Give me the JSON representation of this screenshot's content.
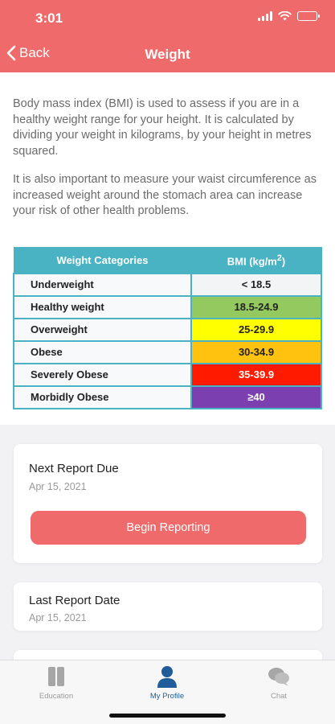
{
  "status_bar": {
    "time": "3:01"
  },
  "nav": {
    "back_label": "Back",
    "title": "Weight"
  },
  "intro": {
    "paragraph1": "Body mass index (BMI) is used to assess if you are in a healthy weight range for your height. It is calculated by dividing your weight in kilograms, by your height in metres squared.",
    "paragraph2": "It is also important to measure your waist circumference as increased weight around the stomach area can increase your risk of other health problems."
  },
  "bmi_table": {
    "header_category": "Weight Categories",
    "header_bmi": "BMI (kg/m",
    "header_bmi_sup": "2",
    "header_bmi_close": ")",
    "rows": [
      {
        "category": "Underweight",
        "range": "< 18.5",
        "color": "#f2f4f5"
      },
      {
        "category": "Healthy weight",
        "range": "18.5-24.9",
        "color": "#93c95e"
      },
      {
        "category": "Overweight",
        "range": "25-29.9",
        "color": "#ffff00"
      },
      {
        "category": "Obese",
        "range": "30-34.9",
        "color": "#ffc20e"
      },
      {
        "category": "Severely Obese",
        "range": "35-39.9",
        "color": "#ff1a00"
      },
      {
        "category": "Morbidly Obese",
        "range": "≥40",
        "color": "#7b3fb0"
      }
    ]
  },
  "next_report": {
    "title": "Next Report Due",
    "date": "Apr 15, 2021",
    "button_label": "Begin Reporting"
  },
  "last_report": {
    "title": "Last Report Date",
    "date": "Apr 15, 2021"
  },
  "tabs": [
    {
      "label": "Education",
      "icon": "book-icon",
      "active": false
    },
    {
      "label": "My Profile",
      "icon": "person-icon",
      "active": true
    },
    {
      "label": "Chat",
      "icon": "chat-icon",
      "active": false
    }
  ],
  "colors": {
    "accent": "#ef6b6b",
    "table_header": "#49b3c3",
    "tab_active": "#1f5c99",
    "tab_inactive": "#9a9a9a"
  }
}
